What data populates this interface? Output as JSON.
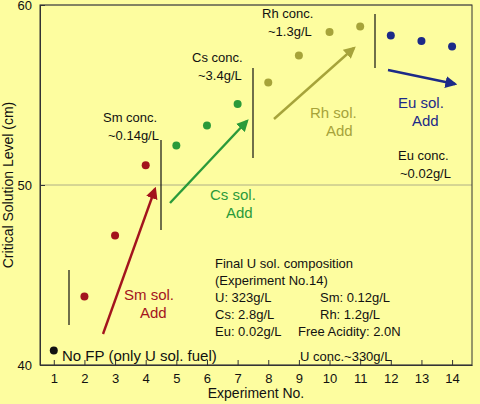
{
  "chart_data": {
    "type": "scatter",
    "xlabel": "Experiment No.",
    "ylabel": "Critical Solution Level (cm)",
    "x": [
      1,
      2,
      3,
      4,
      5,
      6,
      7,
      8,
      9,
      10,
      11,
      12,
      13,
      14
    ],
    "values": [
      40.8,
      43.8,
      47.2,
      51.1,
      52.2,
      53.3,
      54.5,
      55.7,
      57.2,
      58.5,
      58.8,
      58.3,
      58.0,
      57.7
    ],
    "colors": [
      "#111111",
      "#a3141d",
      "#a3141d",
      "#a3141d",
      "#2a9a3a",
      "#2a9a3a",
      "#2a9a3a",
      "#a6a33a",
      "#a6a33a",
      "#a6a33a",
      "#a6a33a",
      "#1c2a88",
      "#1c2a88",
      "#1c2a88"
    ],
    "marker": "circle",
    "xlim": [
      0.55,
      14.65
    ],
    "ylim": [
      40,
      60
    ],
    "xticks": [
      1,
      2,
      3,
      4,
      5,
      6,
      7,
      8,
      9,
      10,
      11,
      12,
      13,
      14
    ],
    "yticks": [
      40,
      50,
      60
    ],
    "grid": true,
    "annotations": [
      "No FP (only U sol. fuel)",
      "U conc.~330g/L",
      "Sm conc.",
      "~0.14g/L",
      "Sm sol.",
      "Add",
      "Cs conc.",
      "~3.4g/L",
      "Cs sol.",
      "Add",
      "Rh conc.",
      "~1.3g/L",
      "Rh sol.",
      "Add",
      "Eu sol.",
      "Add",
      "Eu conc.",
      "~0.02g/L",
      "Final U sol. composition",
      "(Experiment No.14)",
      "U: 323g/L",
      "Sm: 0.12g/L",
      "Cs: 2.8g/L",
      "Rh: 1.2g/L",
      "Eu: 0.02g/L",
      "Free Acidity: 2.0N"
    ]
  }
}
